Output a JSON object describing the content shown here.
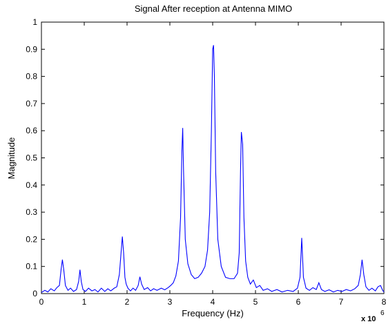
{
  "chart_data": {
    "type": "line",
    "title": "Signal After reception at Antenna MIMO",
    "xlabel": "Frequency (Hz)",
    "ylabel": "Magnitude",
    "x_exponent_label": "x 10",
    "x_exponent_power": "6",
    "xlim": [
      0,
      8
    ],
    "ylim": [
      0,
      1
    ],
    "x_ticks": [
      "0",
      "1",
      "2",
      "3",
      "4",
      "5",
      "6",
      "7",
      "8"
    ],
    "y_ticks": [
      "0",
      "0.1",
      "0.2",
      "0.3",
      "0.4",
      "0.5",
      "0.6",
      "0.7",
      "0.8",
      "0.9",
      "1"
    ],
    "grid": false,
    "series_color": "#0000ff",
    "series": [
      {
        "points": [
          [
            0.0,
            0.004
          ],
          [
            0.08,
            0.012
          ],
          [
            0.15,
            0.006
          ],
          [
            0.22,
            0.018
          ],
          [
            0.3,
            0.01
          ],
          [
            0.36,
            0.022
          ],
          [
            0.42,
            0.03
          ],
          [
            0.46,
            0.09
          ],
          [
            0.49,
            0.125
          ],
          [
            0.52,
            0.09
          ],
          [
            0.56,
            0.03
          ],
          [
            0.62,
            0.012
          ],
          [
            0.68,
            0.02
          ],
          [
            0.75,
            0.008
          ],
          [
            0.82,
            0.015
          ],
          [
            0.87,
            0.045
          ],
          [
            0.9,
            0.088
          ],
          [
            0.93,
            0.045
          ],
          [
            0.97,
            0.015
          ],
          [
            1.03,
            0.008
          ],
          [
            1.1,
            0.02
          ],
          [
            1.18,
            0.01
          ],
          [
            1.25,
            0.015
          ],
          [
            1.32,
            0.006
          ],
          [
            1.4,
            0.02
          ],
          [
            1.48,
            0.008
          ],
          [
            1.55,
            0.018
          ],
          [
            1.62,
            0.01
          ],
          [
            1.7,
            0.02
          ],
          [
            1.76,
            0.025
          ],
          [
            1.82,
            0.07
          ],
          [
            1.86,
            0.15
          ],
          [
            1.89,
            0.21
          ],
          [
            1.92,
            0.15
          ],
          [
            1.95,
            0.06
          ],
          [
            1.98,
            0.035
          ],
          [
            2.02,
            0.02
          ],
          [
            2.08,
            0.01
          ],
          [
            2.14,
            0.02
          ],
          [
            2.2,
            0.012
          ],
          [
            2.26,
            0.03
          ],
          [
            2.3,
            0.062
          ],
          [
            2.34,
            0.035
          ],
          [
            2.4,
            0.015
          ],
          [
            2.48,
            0.022
          ],
          [
            2.55,
            0.01
          ],
          [
            2.62,
            0.018
          ],
          [
            2.7,
            0.012
          ],
          [
            2.8,
            0.02
          ],
          [
            2.88,
            0.014
          ],
          [
            2.96,
            0.022
          ],
          [
            3.02,
            0.03
          ],
          [
            3.08,
            0.04
          ],
          [
            3.14,
            0.065
          ],
          [
            3.2,
            0.12
          ],
          [
            3.25,
            0.28
          ],
          [
            3.28,
            0.52
          ],
          [
            3.3,
            0.61
          ],
          [
            3.32,
            0.45
          ],
          [
            3.36,
            0.2
          ],
          [
            3.42,
            0.11
          ],
          [
            3.5,
            0.07
          ],
          [
            3.58,
            0.055
          ],
          [
            3.66,
            0.06
          ],
          [
            3.74,
            0.075
          ],
          [
            3.82,
            0.1
          ],
          [
            3.88,
            0.16
          ],
          [
            3.93,
            0.3
          ],
          [
            3.97,
            0.6
          ],
          [
            4.0,
            0.9
          ],
          [
            4.02,
            0.915
          ],
          [
            4.04,
            0.8
          ],
          [
            4.07,
            0.45
          ],
          [
            4.12,
            0.2
          ],
          [
            4.2,
            0.1
          ],
          [
            4.3,
            0.06
          ],
          [
            4.4,
            0.055
          ],
          [
            4.5,
            0.055
          ],
          [
            4.58,
            0.075
          ],
          [
            4.62,
            0.15
          ],
          [
            4.65,
            0.45
          ],
          [
            4.67,
            0.595
          ],
          [
            4.7,
            0.55
          ],
          [
            4.73,
            0.28
          ],
          [
            4.77,
            0.12
          ],
          [
            4.82,
            0.06
          ],
          [
            4.88,
            0.035
          ],
          [
            4.95,
            0.05
          ],
          [
            5.02,
            0.022
          ],
          [
            5.1,
            0.03
          ],
          [
            5.18,
            0.012
          ],
          [
            5.28,
            0.018
          ],
          [
            5.38,
            0.008
          ],
          [
            5.5,
            0.015
          ],
          [
            5.62,
            0.006
          ],
          [
            5.75,
            0.012
          ],
          [
            5.88,
            0.008
          ],
          [
            5.98,
            0.02
          ],
          [
            6.04,
            0.06
          ],
          [
            6.08,
            0.205
          ],
          [
            6.12,
            0.06
          ],
          [
            6.18,
            0.02
          ],
          [
            6.26,
            0.012
          ],
          [
            6.34,
            0.022
          ],
          [
            6.42,
            0.015
          ],
          [
            6.48,
            0.04
          ],
          [
            6.54,
            0.015
          ],
          [
            6.62,
            0.008
          ],
          [
            6.72,
            0.014
          ],
          [
            6.82,
            0.006
          ],
          [
            6.92,
            0.012
          ],
          [
            7.02,
            0.008
          ],
          [
            7.12,
            0.015
          ],
          [
            7.22,
            0.01
          ],
          [
            7.32,
            0.018
          ],
          [
            7.4,
            0.03
          ],
          [
            7.45,
            0.07
          ],
          [
            7.49,
            0.125
          ],
          [
            7.53,
            0.07
          ],
          [
            7.58,
            0.025
          ],
          [
            7.65,
            0.012
          ],
          [
            7.72,
            0.02
          ],
          [
            7.8,
            0.01
          ],
          [
            7.86,
            0.025
          ],
          [
            7.92,
            0.03
          ],
          [
            7.97,
            0.012
          ],
          [
            8.0,
            0.006
          ]
        ]
      }
    ]
  }
}
